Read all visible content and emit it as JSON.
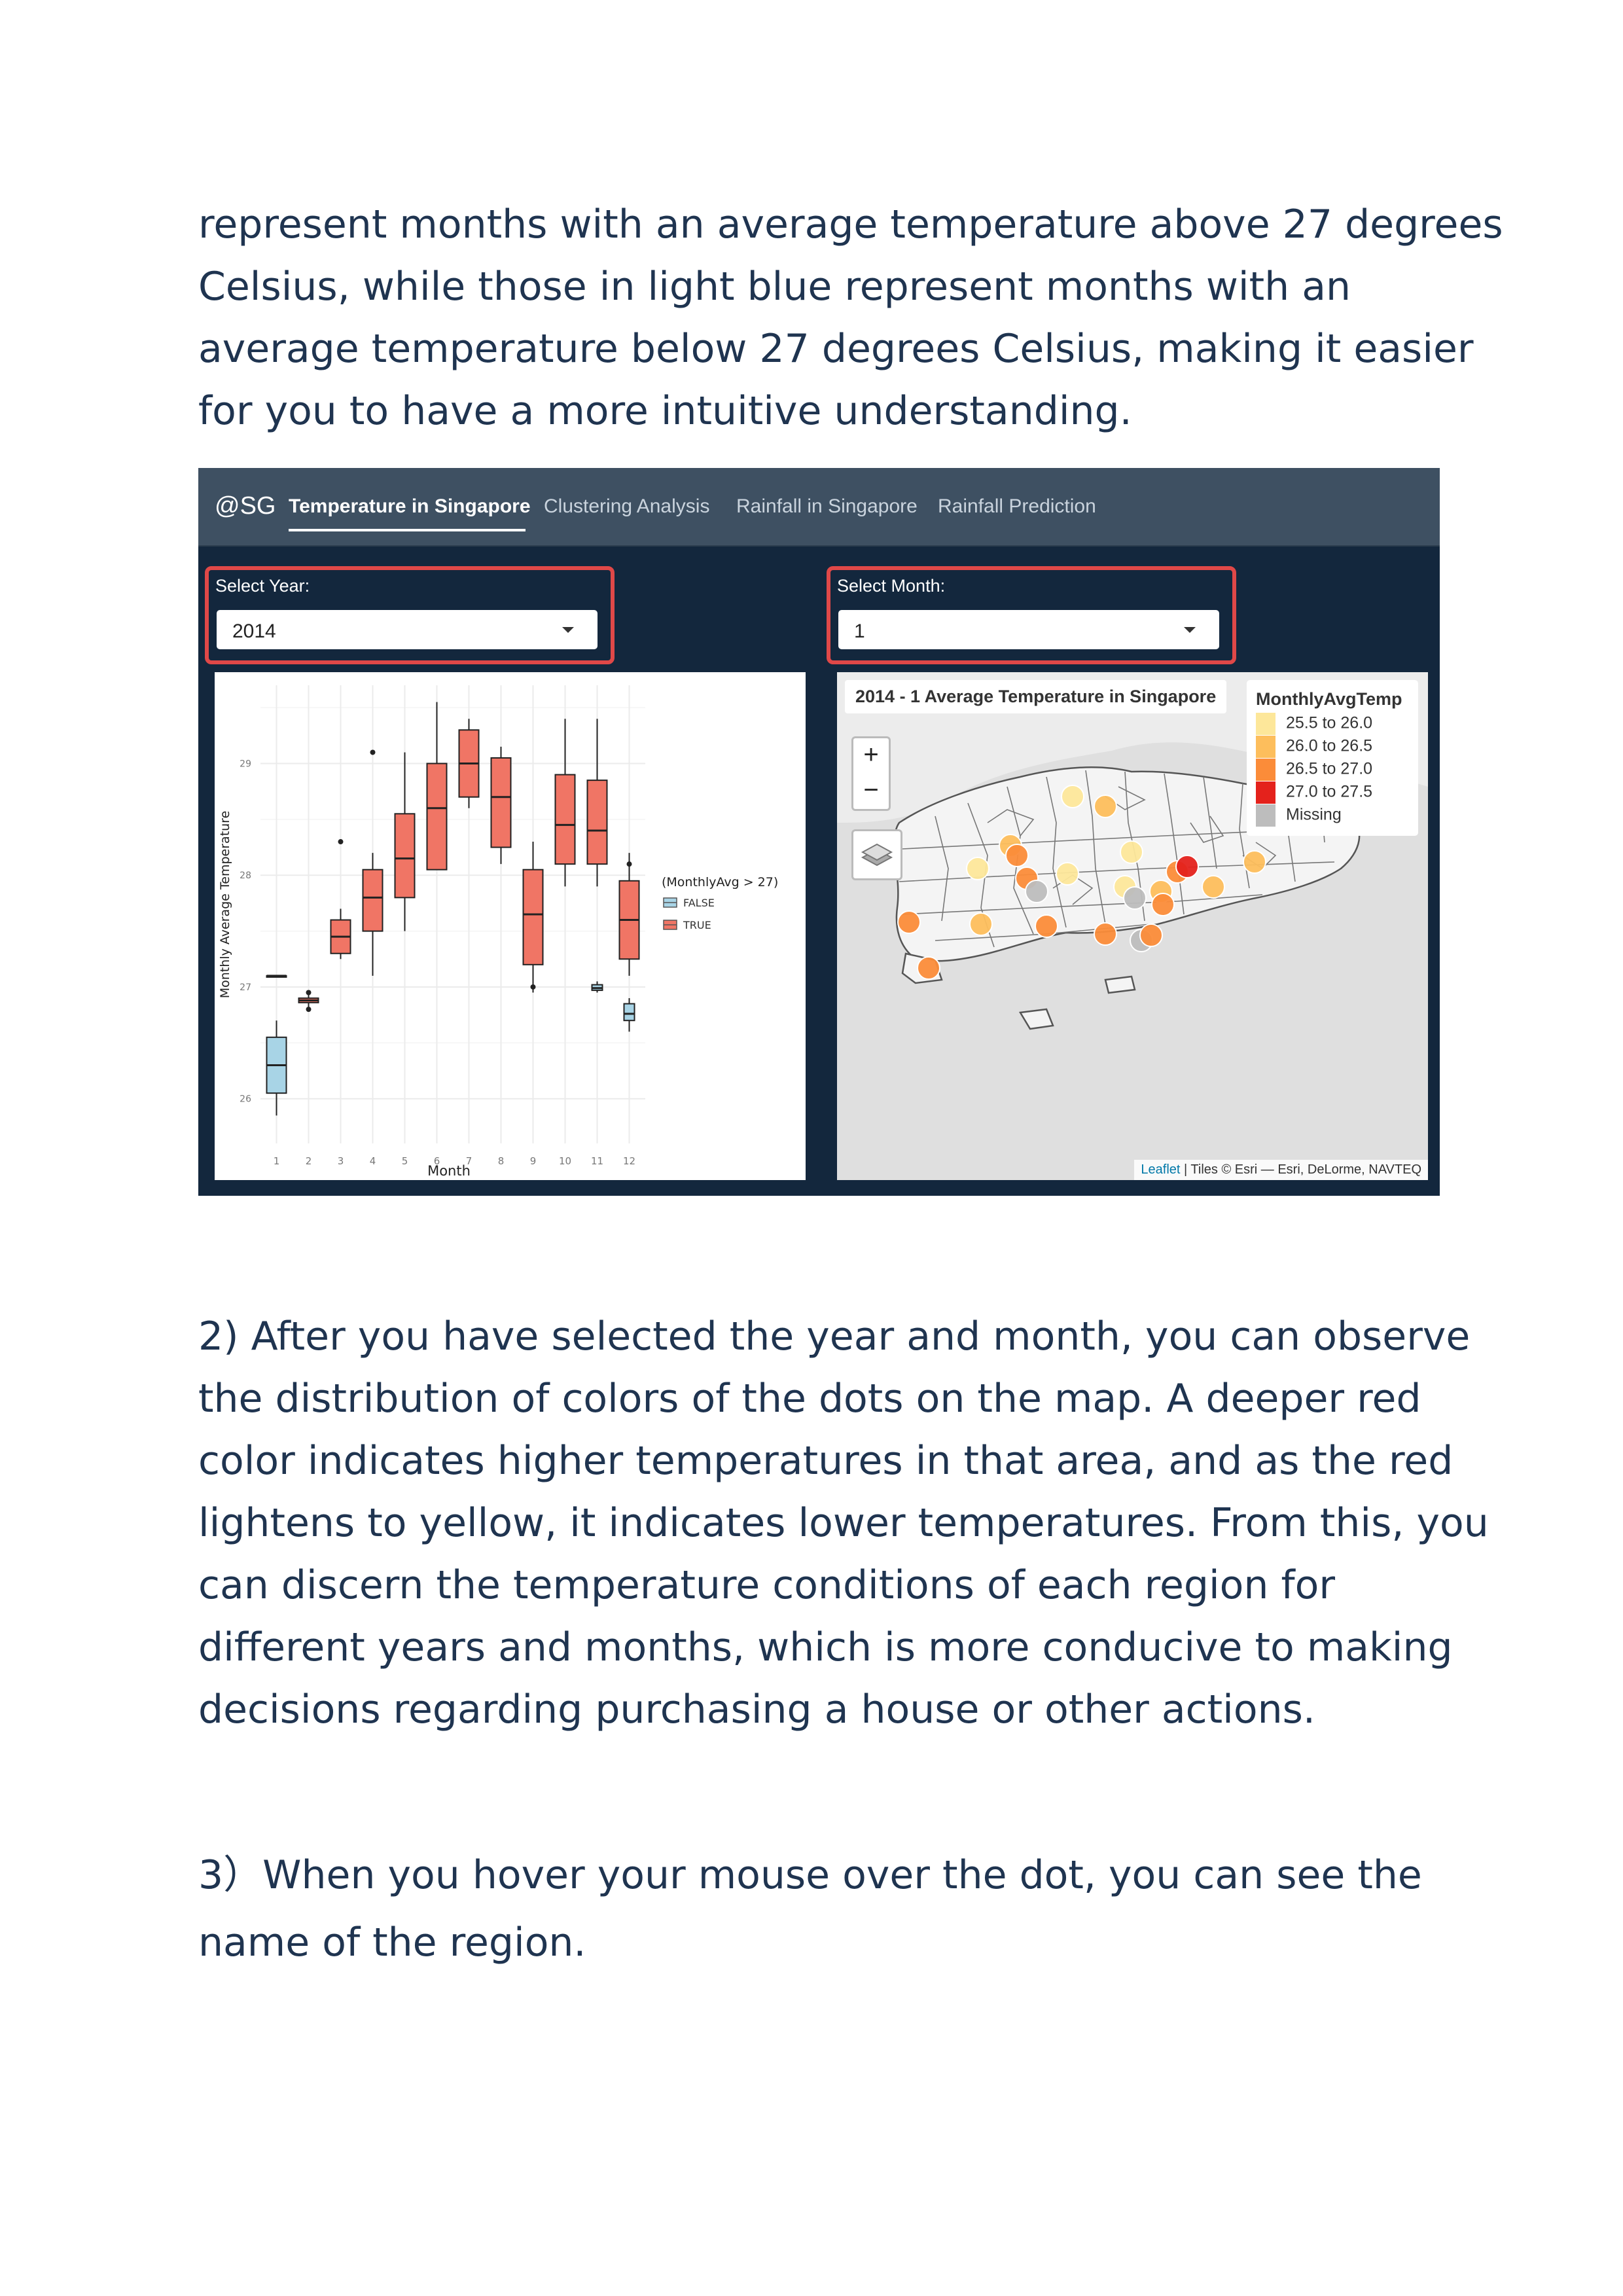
{
  "intro": {
    "lines": [
      "represent months with an average temperature above 27 degrees",
      "Celsius, while those in light blue represent months with an",
      "average temperature below 27 degrees Celsius, making it easier",
      "for you to have a more intuitive understanding."
    ]
  },
  "app": {
    "brand": "@SG",
    "tabs": [
      {
        "label": "Temperature in Singapore",
        "active": true
      },
      {
        "label": "Clustering Analysis",
        "active": false
      },
      {
        "label": "Rainfall in Singapore",
        "active": false
      },
      {
        "label": "Rainfall Prediction",
        "active": false
      }
    ],
    "year_select": {
      "label": "Select Year:",
      "value": "2014"
    },
    "month_select": {
      "label": "Select Month:",
      "value": "1"
    },
    "highlight_color": "#e04848"
  },
  "chart_data": {
    "type": "box",
    "xlabel": "Month",
    "ylabel": "Monthly Average Temperature",
    "categories": [
      "1",
      "2",
      "3",
      "4",
      "5",
      "6",
      "7",
      "8",
      "9",
      "10",
      "11",
      "12"
    ],
    "y_ticks": [
      26,
      27,
      28,
      29
    ],
    "ylim": [
      25.6,
      29.7
    ],
    "legend": {
      "title": "(MonthlyAvg > 27)",
      "entries": [
        "FALSE",
        "TRUE"
      ],
      "position": "right"
    },
    "colors": {
      "FALSE": "#a8d4e6",
      "TRUE": "#f07565"
    },
    "series": [
      {
        "name": "FALSE",
        "boxes": [
          {
            "month": 1,
            "whisker_low": 25.85,
            "q1": 26.05,
            "median": 26.3,
            "q3": 26.55,
            "whisker_high": 26.7
          },
          {
            "month": 11,
            "whisker_low": 26.95,
            "q1": 26.97,
            "median": 26.99,
            "q3": 27.02,
            "whisker_high": 27.05
          },
          {
            "month": 12,
            "whisker_low": 26.6,
            "q1": 26.7,
            "median": 26.76,
            "q3": 26.85,
            "whisker_high": 26.9
          }
        ]
      },
      {
        "name": "TRUE",
        "boxes": [
          {
            "month": 1,
            "whisker_low": 27.1,
            "q1": 27.1,
            "median": 27.1,
            "q3": 27.1,
            "whisker_high": 27.1
          },
          {
            "month": 2,
            "whisker_low": 26.82,
            "q1": 26.86,
            "median": 26.88,
            "q3": 26.9,
            "whisker_high": 26.93,
            "outliers": [
              26.95,
              26.8
            ]
          },
          {
            "month": 3,
            "whisker_low": 27.25,
            "q1": 27.3,
            "median": 27.45,
            "q3": 27.6,
            "whisker_high": 27.7,
            "outliers": [
              28.3
            ]
          },
          {
            "month": 4,
            "whisker_low": 27.1,
            "q1": 27.5,
            "median": 27.8,
            "q3": 28.05,
            "whisker_high": 28.2,
            "outliers": [
              29.1
            ]
          },
          {
            "month": 5,
            "whisker_low": 27.5,
            "q1": 27.8,
            "median": 28.15,
            "q3": 28.55,
            "whisker_high": 29.1
          },
          {
            "month": 6,
            "whisker_low": 28.05,
            "q1": 28.05,
            "median": 28.6,
            "q3": 29.0,
            "whisker_high": 29.55
          },
          {
            "month": 7,
            "whisker_low": 28.6,
            "q1": 28.7,
            "median": 29.0,
            "q3": 29.3,
            "whisker_high": 29.4
          },
          {
            "month": 8,
            "whisker_low": 28.1,
            "q1": 28.25,
            "median": 28.7,
            "q3": 29.05,
            "whisker_high": 29.15
          },
          {
            "month": 9,
            "whisker_low": 26.95,
            "q1": 27.2,
            "median": 27.65,
            "q3": 28.05,
            "whisker_high": 28.3,
            "outliers": [
              27.0
            ]
          },
          {
            "month": 10,
            "whisker_low": 27.9,
            "q1": 28.1,
            "median": 28.45,
            "q3": 28.9,
            "whisker_high": 29.4
          },
          {
            "month": 11,
            "whisker_low": 27.9,
            "q1": 28.1,
            "median": 28.4,
            "q3": 28.85,
            "whisker_high": 29.4
          },
          {
            "month": 12,
            "whisker_low": 27.1,
            "q1": 27.25,
            "median": 27.6,
            "q3": 27.95,
            "whisker_high": 28.2,
            "outliers": [
              28.1
            ]
          }
        ]
      }
    ]
  },
  "map": {
    "title": "2014 - 1 Average Temperature in Singapore",
    "zoom_in": "+",
    "zoom_out": "−",
    "legend_title": "MonthlyAvgTemp",
    "legend_items": [
      {
        "label": "25.5 to 26.0",
        "color": "#fde79a"
      },
      {
        "label": "26.0 to 26.5",
        "color": "#fdbe5c"
      },
      {
        "label": "26.5 to 27.0",
        "color": "#fb8c39"
      },
      {
        "label": "27.0 to 27.5",
        "color": "#e4221c"
      },
      {
        "label": "Missing",
        "color": "#bdbdbd"
      }
    ],
    "attribution_link": "Leaflet",
    "attribution_text": " | Tiles © Esri — Esri, DeLorme, NAVTEQ"
  },
  "body": {
    "p2_lines": [
      "2) After you have selected the year and month, you can observe",
      "the distribution of colors of the dots on the map. A deeper red",
      "color indicates higher temperatures in that area, and as the red",
      "lightens to yellow, it indicates lower temperatures. From this, you",
      "can discern the temperature conditions of each region for",
      "different years and months, which is more conducive to making",
      "decisions regarding purchasing a house or other actions."
    ],
    "p3_lines": [
      "3）When you hover your mouse over the dot, you can see the",
      "name of the region."
    ]
  }
}
